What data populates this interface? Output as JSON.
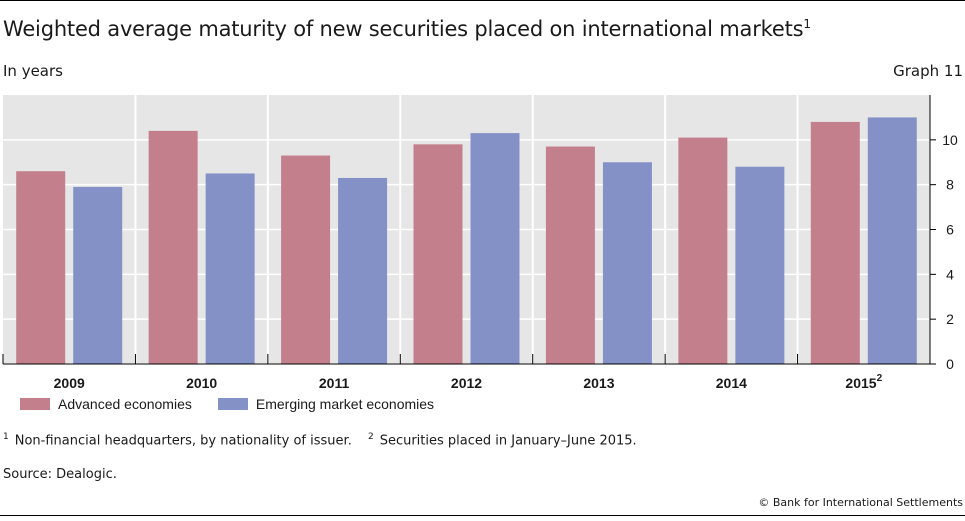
{
  "header": {
    "title": "Weighted average maturity of new securities placed on international markets",
    "title_footnote_marker": "1",
    "units": "In years",
    "graph_number": "Graph 11"
  },
  "legend": [
    {
      "name": "Advanced economies",
      "color": "#c47f8d"
    },
    {
      "name": "Emerging market economies",
      "color": "#8491c7"
    }
  ],
  "footnotes": {
    "note1_marker": "1",
    "note1_text": "Non-financial headquarters, by nationality of issuer.",
    "note2_marker": "2",
    "note2_text": "Securities placed in January–June 2015."
  },
  "source": "Source: Dealogic.",
  "copyright": "© Bank for International Settlements",
  "chart_data": {
    "type": "bar",
    "categories": [
      "2009",
      "2010",
      "2011",
      "2012",
      "2013",
      "2014",
      "2015"
    ],
    "category_footnotes": [
      "",
      "",
      "",
      "",
      "",
      "",
      "2"
    ],
    "series": [
      {
        "name": "Advanced economies",
        "color": "#c47f8d",
        "values": [
          8.6,
          10.4,
          9.3,
          9.8,
          9.7,
          10.1,
          10.8
        ]
      },
      {
        "name": "Emerging market economies",
        "color": "#8491c7",
        "values": [
          7.9,
          8.5,
          8.3,
          10.3,
          9.0,
          8.8,
          11.0
        ]
      }
    ],
    "y_ticks": [
      0,
      2,
      4,
      6,
      8,
      10
    ],
    "ylim": [
      0,
      12
    ],
    "y_axis_side": "right",
    "grid": true,
    "plot_background": "#e6e6e6",
    "legend_position": "bottom-left"
  }
}
